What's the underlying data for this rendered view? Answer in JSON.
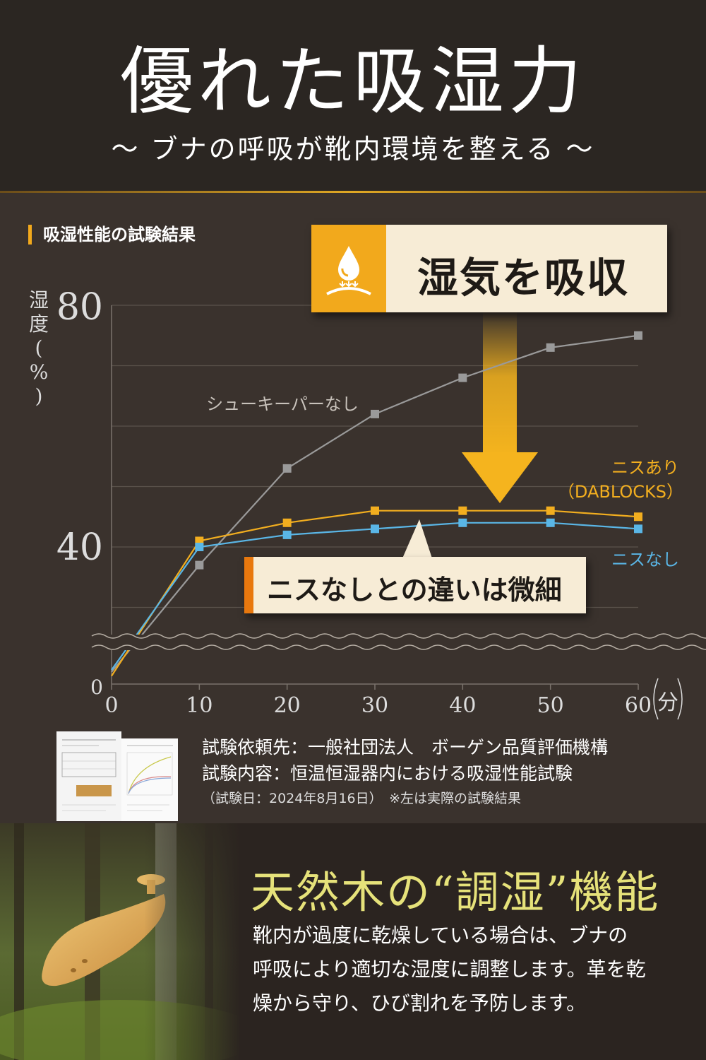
{
  "header": {
    "title": "優れた吸湿力",
    "subtitle": "〜 ブナの呼吸が靴内環境を整える 〜"
  },
  "chart_section": {
    "label": "吸湿性能の試験結果",
    "callout": "湿気を吸収",
    "note": "ニスなしとの違いは微細"
  },
  "chart_data": {
    "type": "line",
    "xlabel": "分",
    "ylabel": "湿度(%)",
    "x": [
      0,
      10,
      20,
      30,
      40,
      50,
      60
    ],
    "x_ticks": [
      "0",
      "10",
      "20",
      "30",
      "40",
      "50",
      "60"
    ],
    "y_ticks": [
      "0",
      "40",
      "80"
    ],
    "ylim": [
      0,
      80
    ],
    "axis_break": "between 0 and 40",
    "grid": "horizontal",
    "series": [
      {
        "name": "シューキーパーなし",
        "color": "#9a9a9a",
        "values": [
          6,
          37,
          53,
          62,
          68,
          73,
          75
        ]
      },
      {
        "name": "ニスあり（DABLOCKS）",
        "color": "#f2ae1f",
        "values": [
          4,
          41,
          44,
          46,
          46,
          46,
          45
        ]
      },
      {
        "name": "ニスなし",
        "color": "#5ab6e6",
        "values": [
          7,
          40,
          42,
          43,
          44,
          44,
          43
        ]
      }
    ],
    "legend_labels": {
      "gray": "シューキーパーなし",
      "yellow_line1": "ニスあり",
      "yellow_line2": "（DABLOCKS）",
      "blue": "ニスなし"
    }
  },
  "test_info": {
    "line1": "試験依頼先：一般社団法人　ボーゲン品質評価機構",
    "line2": "試験内容：恒温恒湿器内における吸湿性能試験",
    "line3": "（試験日：2024年8月16日）　※左は実際の試験結果"
  },
  "feature": {
    "title": "天然木の“調湿”機能",
    "body_lines": [
      "靴内が過度に乾燥している場合は、ブナの",
      "呼吸により適切な湿度に調整します。革を乾",
      "燥から守り、ひび割れを予防します。"
    ]
  },
  "colors": {
    "accent": "#f2a91c",
    "background": "#3a322d",
    "title_yellow": "#e6e27a"
  }
}
